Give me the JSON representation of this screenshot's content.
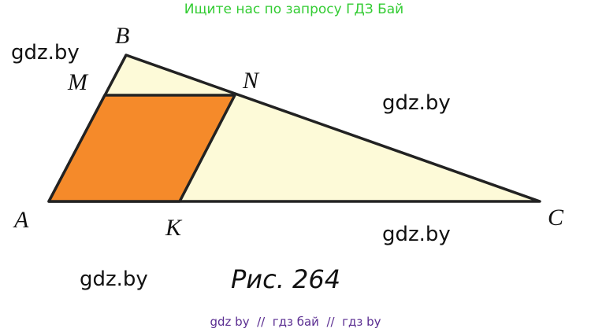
{
  "header": {
    "title": "Ищите нас по запросу ГДЗ Бай"
  },
  "watermarks": [
    "gdz.by",
    "gdz.by",
    "gdz.by",
    "gdz.by"
  ],
  "points": [
    "A",
    "B",
    "C",
    "M",
    "N",
    "K"
  ],
  "caption": "Рис. 264",
  "footer": "gdz by  //  гдз бай  //  гдз by"
}
